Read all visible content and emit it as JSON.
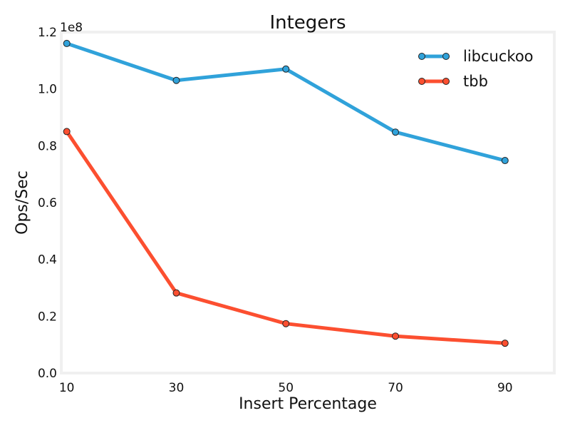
{
  "chart_data": {
    "type": "line",
    "title": "Integers",
    "xlabel": "Insert Percentage",
    "ylabel": "Ops/Sec",
    "y_offset_label": "1e8",
    "x": [
      10,
      30,
      50,
      70,
      90
    ],
    "x_tick_labels": [
      "10",
      "30",
      "50",
      "70",
      "90"
    ],
    "xlim": [
      9,
      99
    ],
    "ylim": [
      0,
      1.2
    ],
    "y_scale_factor": 100000000,
    "y_ticks": [
      0.0,
      0.2,
      0.4,
      0.6,
      0.8,
      1.0,
      1.2
    ],
    "y_tick_labels": [
      "0.0",
      "0.2",
      "0.4",
      "0.6",
      "0.8",
      "1.0",
      "1.2"
    ],
    "grid": false,
    "legend_position": "top-right",
    "series": [
      {
        "name": "libcuckoo",
        "color": "#30a2da",
        "values": [
          116000000,
          103000000,
          107000000,
          84800000,
          74800000
        ]
      },
      {
        "name": "tbb",
        "color": "#fc4f30",
        "values": [
          85000000,
          28200000,
          17400000,
          13000000,
          10500000
        ]
      }
    ],
    "frame_color": "#f0f0f0",
    "marker_edge_color": "#222222"
  }
}
